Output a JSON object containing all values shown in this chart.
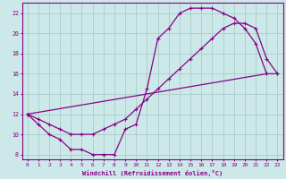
{
  "xlabel": "Windchill (Refroidissement éolien,°C)",
  "bg_color": "#cce8e8",
  "line_color": "#880088",
  "grid_color": "#aacccc",
  "xlim": [
    -0.5,
    23.5
  ],
  "ylim": [
    7.5,
    23.0
  ],
  "xticks": [
    0,
    1,
    2,
    3,
    4,
    5,
    6,
    7,
    8,
    9,
    10,
    11,
    12,
    13,
    14,
    15,
    16,
    17,
    18,
    19,
    20,
    21,
    22,
    23
  ],
  "yticks": [
    8,
    10,
    12,
    14,
    16,
    18,
    20,
    22
  ],
  "curve1_x": [
    0,
    1,
    2,
    3,
    4,
    5,
    6,
    7,
    8,
    9,
    10,
    11,
    12,
    13,
    14,
    15,
    16,
    17,
    18,
    19,
    20,
    21,
    22
  ],
  "curve1_y": [
    12.0,
    11.0,
    10.0,
    9.5,
    8.5,
    8.5,
    8.0,
    8.0,
    8.0,
    10.5,
    11.0,
    14.5,
    19.5,
    20.5,
    22.0,
    22.5,
    22.5,
    22.5,
    22.0,
    21.5,
    20.5,
    19.0,
    16.0
  ],
  "curve2_x": [
    0,
    22,
    23
  ],
  "curve2_y": [
    12.0,
    16.0,
    16.0
  ],
  "curve3_x": [
    0,
    1,
    2,
    3,
    4,
    5,
    6,
    7,
    8,
    9,
    10,
    11,
    12,
    13,
    14,
    15,
    16,
    17,
    18,
    19,
    20,
    21,
    22,
    23
  ],
  "curve3_y": [
    12.0,
    11.5,
    11.0,
    10.5,
    10.0,
    10.0,
    10.0,
    10.5,
    11.0,
    11.5,
    12.5,
    13.5,
    14.5,
    15.5,
    16.5,
    17.5,
    18.5,
    19.5,
    20.5,
    21.0,
    21.0,
    20.5,
    17.5,
    16.0
  ]
}
